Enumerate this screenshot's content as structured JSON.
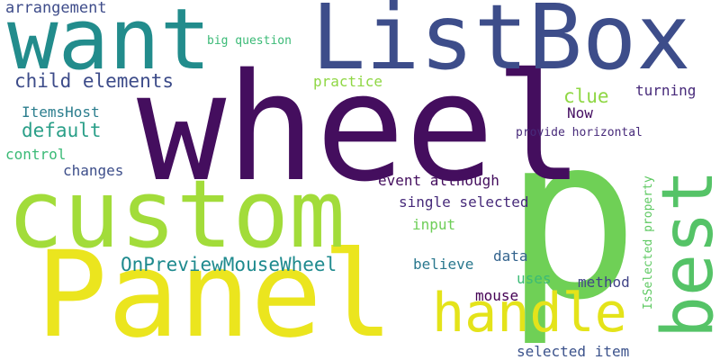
{
  "words": [
    {
      "id": "p",
      "text": "p",
      "color": "#6fd056"
    },
    {
      "id": "wheel",
      "text": "wheel",
      "color": "#440e5e"
    },
    {
      "id": "panel",
      "text": "Panel",
      "color": "#ebe51e"
    },
    {
      "id": "custom",
      "text": "custom",
      "color": "#a2dc3a"
    },
    {
      "id": "listbox",
      "text": "ListBox",
      "color": "#3d4d8a"
    },
    {
      "id": "want",
      "text": "want",
      "color": "#228c8c"
    },
    {
      "id": "best",
      "text": "best",
      "color": "#55c367"
    },
    {
      "id": "handle",
      "text": "handle",
      "color": "#e4e31a"
    },
    {
      "id": "onpreview",
      "text": "OnPreviewMouseWheel",
      "color": "#1e8a8e"
    },
    {
      "id": "child-elements",
      "text": "child elements",
      "color": "#3c4b89"
    },
    {
      "id": "default",
      "text": "default",
      "color": "#2a9f88"
    },
    {
      "id": "arrangement",
      "text": "arrangement",
      "color": "#3e4c8a"
    },
    {
      "id": "clue",
      "text": "clue",
      "color": "#8fd744"
    },
    {
      "id": "turning",
      "text": "turning",
      "color": "#472a7a"
    },
    {
      "id": "itemshost",
      "text": "ItemsHost",
      "color": "#2c7e8e"
    },
    {
      "id": "now",
      "text": "Now",
      "color": "#471063"
    },
    {
      "id": "control",
      "text": "control",
      "color": "#3aba76"
    },
    {
      "id": "changes",
      "text": "changes",
      "color": "#3d4e8a"
    },
    {
      "id": "practice",
      "text": "practice",
      "color": "#8fd744"
    },
    {
      "id": "big-question",
      "text": "big question",
      "color": "#3aba76"
    },
    {
      "id": "provide-horizontal",
      "text": "provide horizontal",
      "color": "#472a7a"
    },
    {
      "id": "event-although",
      "text": "event although",
      "color": "#440e5e"
    },
    {
      "id": "single-selected",
      "text": "single selected",
      "color": "#472a7a"
    },
    {
      "id": "input",
      "text": "input",
      "color": "#6ece58"
    },
    {
      "id": "isselected",
      "text": "IsSelected property",
      "color": "#5ec962"
    },
    {
      "id": "data",
      "text": "data",
      "color": "#33638d"
    },
    {
      "id": "believe",
      "text": "believe",
      "color": "#2a788e"
    },
    {
      "id": "uses",
      "text": "uses",
      "color": "#3bbb75"
    },
    {
      "id": "method",
      "text": "method",
      "color": "#414487"
    },
    {
      "id": "mouse",
      "text": "mouse",
      "color": "#440154"
    },
    {
      "id": "selected-item",
      "text": "selected item",
      "color": "#3b528b"
    }
  ]
}
